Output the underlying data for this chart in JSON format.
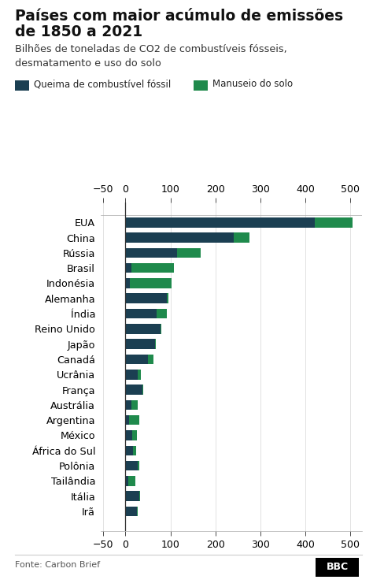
{
  "title_line1": "Países com maior acúmulo de emissões",
  "title_line2": "de 1850 a 2021",
  "subtitle": "Bilhões de toneladas de CO2 de combustíveis fósseis,\ndesmatamento e uso do solo",
  "source": "Fonte: Carbon Brief",
  "legend1": "Queima de combustível fóssil",
  "legend2": "Manuseio do solo",
  "color_fossil": "#1b3f52",
  "color_land": "#1f8a4c",
  "background": "#ffffff",
  "grid_color": "#dddddd",
  "countries": [
    "EUA",
    "China",
    "Rússia",
    "Brasil",
    "Indonésia",
    "Alemanha",
    "Índia",
    "Reino Unido",
    "Japão",
    "Canadá",
    "Ucrânia",
    "França",
    "Austrália",
    "Argentina",
    "México",
    "África do Sul",
    "Polônia",
    "Tailândia",
    "Itália",
    "Irã"
  ],
  "fossil": [
    420,
    240,
    115,
    13,
    10,
    92,
    70,
    78,
    65,
    50,
    28,
    37,
    14,
    8,
    15,
    16,
    27,
    6,
    30,
    25
  ],
  "land": [
    85,
    35,
    52,
    95,
    92,
    4,
    22,
    2,
    2,
    13,
    6,
    3,
    14,
    22,
    10,
    8,
    4,
    16,
    2,
    3
  ],
  "xlim": [
    -55,
    525
  ],
  "xticks": [
    -50,
    0,
    100,
    200,
    300,
    400,
    500
  ]
}
